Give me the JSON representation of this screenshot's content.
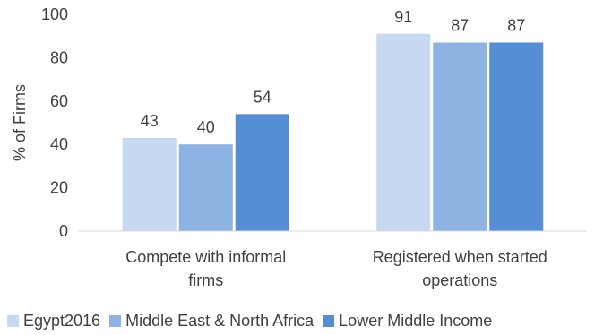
{
  "chart_data": {
    "type": "bar",
    "categories": [
      [
        "Compete with informal",
        "firms"
      ],
      [
        "Registered when started",
        "operations"
      ]
    ],
    "series": [
      {
        "name": "Egypt2016",
        "values": [
          43,
          91
        ],
        "color": "#c6d9f1"
      },
      {
        "name": "Middle East & North Africa",
        "values": [
          40,
          87
        ],
        "color": "#8db3e2"
      },
      {
        "name": "Lower Middle Income",
        "values": [
          54,
          87
        ],
        "color": "#558ed5"
      }
    ],
    "ylabel": "% of Firms",
    "ylim": [
      0,
      100
    ],
    "yticks": [
      0,
      20,
      40,
      60,
      80,
      100
    ],
    "grid": false,
    "legend": "bottom"
  }
}
